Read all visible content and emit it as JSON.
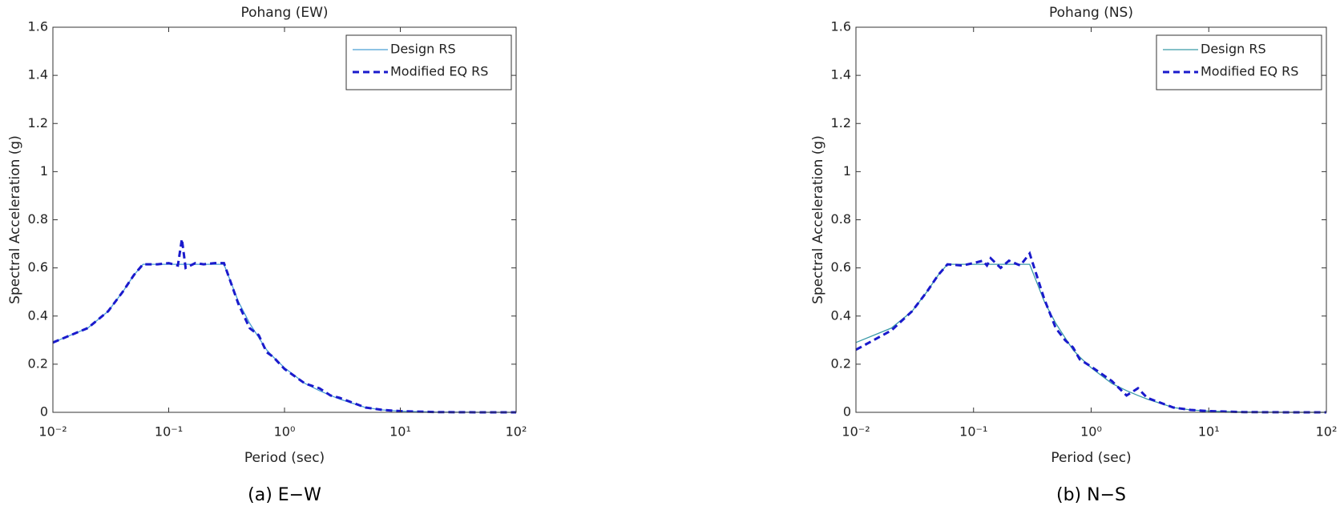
{
  "chart_data": [
    {
      "type": "line",
      "title": "Pohang (EW)",
      "caption": "(a) E−W",
      "xlabel": "Period (sec)",
      "ylabel": "Spectral Acceleration (g)",
      "xscale": "log",
      "xlim": [
        0.01,
        100
      ],
      "ylim": [
        0,
        1.6
      ],
      "xticks": [
        {
          "value": 0.01,
          "label": "10⁻²"
        },
        {
          "value": 0.1,
          "label": "10⁻¹"
        },
        {
          "value": 1,
          "label": "10⁰"
        },
        {
          "value": 10,
          "label": "10¹"
        },
        {
          "value": 100,
          "label": "10²"
        }
      ],
      "yticks": [
        0,
        0.2,
        0.4,
        0.6,
        0.8,
        1,
        1.2,
        1.4,
        1.6
      ],
      "legend": "upper right",
      "x": [
        0.01,
        0.02,
        0.03,
        0.04,
        0.05,
        0.06,
        0.08,
        0.1,
        0.12,
        0.13,
        0.14,
        0.17,
        0.2,
        0.25,
        0.3,
        0.4,
        0.5,
        0.6,
        0.7,
        0.8,
        1,
        1.5,
        2,
        2.5,
        3,
        5,
        7,
        10,
        20,
        50,
        100
      ],
      "series": [
        {
          "name": "Design RS",
          "color": "#4a9fd4",
          "style": "solid",
          "values": [
            0.29,
            0.35,
            0.42,
            0.5,
            0.57,
            0.615,
            0.615,
            0.615,
            0.615,
            0.615,
            0.615,
            0.615,
            0.615,
            0.615,
            0.615,
            0.46,
            0.37,
            0.31,
            0.26,
            0.23,
            0.185,
            0.12,
            0.09,
            0.07,
            0.055,
            0.02,
            0.01,
            0.005,
            0.001,
            0,
            0
          ]
        },
        {
          "name": "Modified EQ RS",
          "color": "#1a1acc",
          "style": "dashed",
          "values": [
            0.29,
            0.35,
            0.42,
            0.5,
            0.57,
            0.615,
            0.615,
            0.62,
            0.61,
            0.72,
            0.6,
            0.62,
            0.615,
            0.62,
            0.62,
            0.45,
            0.35,
            0.32,
            0.25,
            0.23,
            0.18,
            0.12,
            0.1,
            0.07,
            0.06,
            0.02,
            0.01,
            0.005,
            0.001,
            0,
            0
          ]
        }
      ]
    },
    {
      "type": "line",
      "title": "Pohang (NS)",
      "caption": "(b) N−S",
      "xlabel": "Period (sec)",
      "ylabel": "Spectral Acceleration (g)",
      "xscale": "log",
      "xlim": [
        0.01,
        100
      ],
      "ylim": [
        0,
        1.6
      ],
      "xticks": [
        {
          "value": 0.01,
          "label": "10⁻²"
        },
        {
          "value": 0.1,
          "label": "10⁻¹"
        },
        {
          "value": 1,
          "label": "10⁰"
        },
        {
          "value": 10,
          "label": "10¹"
        },
        {
          "value": 100,
          "label": "10²"
        }
      ],
      "yticks": [
        0,
        0.2,
        0.4,
        0.6,
        0.8,
        1,
        1.2,
        1.4,
        1.6
      ],
      "legend": "upper right",
      "x": [
        0.01,
        0.02,
        0.03,
        0.04,
        0.05,
        0.06,
        0.08,
        0.1,
        0.12,
        0.13,
        0.14,
        0.17,
        0.2,
        0.25,
        0.3,
        0.4,
        0.5,
        0.6,
        0.7,
        0.8,
        1,
        1.5,
        2,
        2.5,
        3,
        5,
        7,
        10,
        20,
        50,
        100
      ],
      "series": [
        {
          "name": "Design RS",
          "color": "#3a9aa8",
          "style": "solid",
          "values": [
            0.29,
            0.35,
            0.42,
            0.5,
            0.57,
            0.615,
            0.615,
            0.615,
            0.615,
            0.615,
            0.615,
            0.615,
            0.615,
            0.615,
            0.615,
            0.46,
            0.37,
            0.31,
            0.26,
            0.23,
            0.185,
            0.12,
            0.09,
            0.07,
            0.055,
            0.02,
            0.01,
            0.005,
            0.001,
            0,
            0
          ]
        },
        {
          "name": "Modified EQ RS",
          "color": "#1a1acc",
          "style": "dashed",
          "values": [
            0.26,
            0.34,
            0.42,
            0.5,
            0.57,
            0.615,
            0.61,
            0.62,
            0.63,
            0.61,
            0.64,
            0.6,
            0.63,
            0.61,
            0.66,
            0.47,
            0.35,
            0.3,
            0.27,
            0.22,
            0.19,
            0.13,
            0.07,
            0.1,
            0.06,
            0.02,
            0.01,
            0.005,
            0.001,
            0,
            0
          ]
        }
      ]
    }
  ]
}
